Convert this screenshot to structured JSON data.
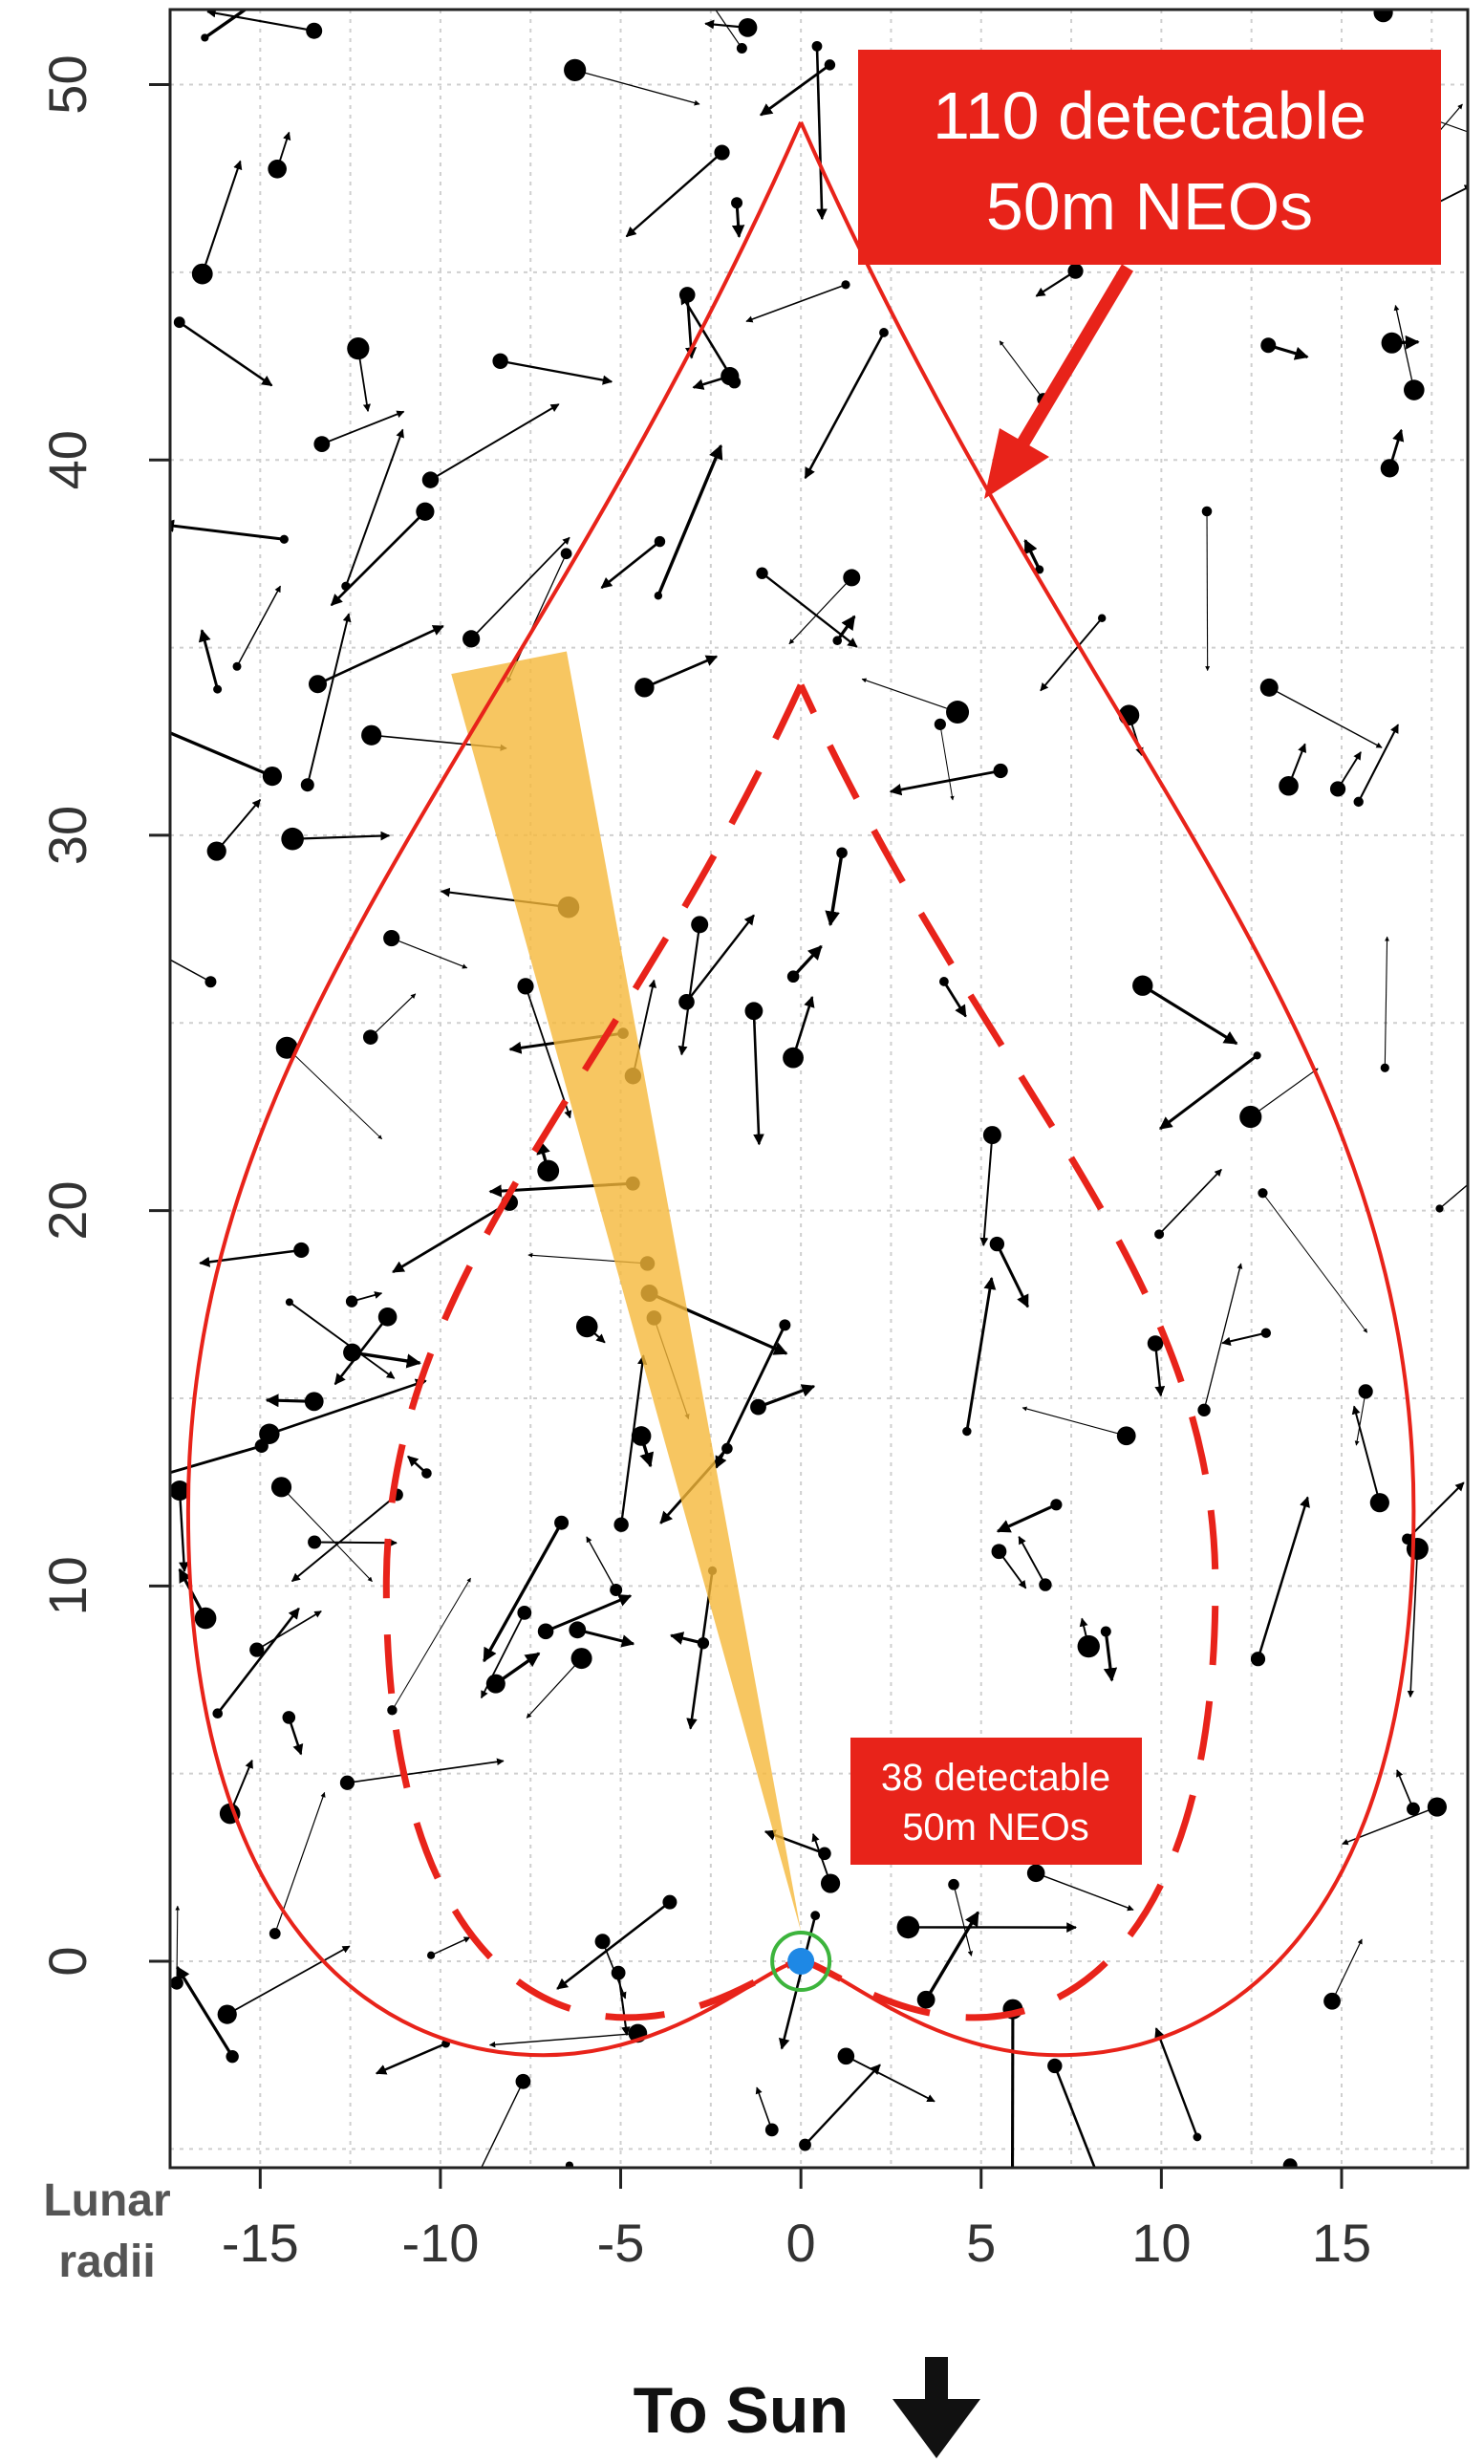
{
  "chart_data": {
    "type": "scatter",
    "title": "",
    "xlabel": "Lunar radii",
    "ylabel": "",
    "xlim": [
      -17.5,
      18.5
    ],
    "ylim": [
      -5.5,
      52
    ],
    "x_ticks": [
      -15,
      -10,
      -5,
      0,
      5,
      10,
      15
    ],
    "y_ticks": [
      0,
      10,
      20,
      30,
      40,
      50
    ],
    "x_tick_labels": [
      "-15",
      "-10",
      "-5",
      "0",
      "5",
      "10",
      "15"
    ],
    "y_tick_labels": [
      "0",
      "10",
      "20",
      "30",
      "40",
      "50"
    ],
    "grid": true,
    "outer_contour": {
      "label": "110 detectable 50m NEOs",
      "label_lines": [
        "110 detectable",
        "50m NEOs"
      ],
      "tip": [
        0,
        49
      ],
      "half_width": 17,
      "waist_y": 12,
      "bottom_y": -2.5,
      "color": "#e8231a"
    },
    "inner_contour": {
      "label": "38 detectable 50m NEOs",
      "label_lines": [
        "38 detectable",
        "50m NEOs"
      ],
      "tip": [
        0,
        34
      ],
      "half_width": 11.5,
      "waist_y": 10,
      "bottom_y": -1.5,
      "color": "#e8231a",
      "dashed": true
    },
    "field_of_view_wedge": {
      "apex": [
        0,
        0.8
      ],
      "far_edge": [
        [
          -9.7,
          34.3
        ],
        [
          -6.5,
          34.9
        ]
      ],
      "color": "#f5b83a"
    },
    "observer": {
      "x": 0,
      "y": 0,
      "color": "#1e88e5",
      "ring_color": "#3cb43c"
    },
    "neo_field": {
      "count_shown": 180,
      "seed": 20240,
      "point_color": "#000000"
    },
    "direction_label": "To Sun",
    "direction_icon": "down-arrow-icon"
  }
}
